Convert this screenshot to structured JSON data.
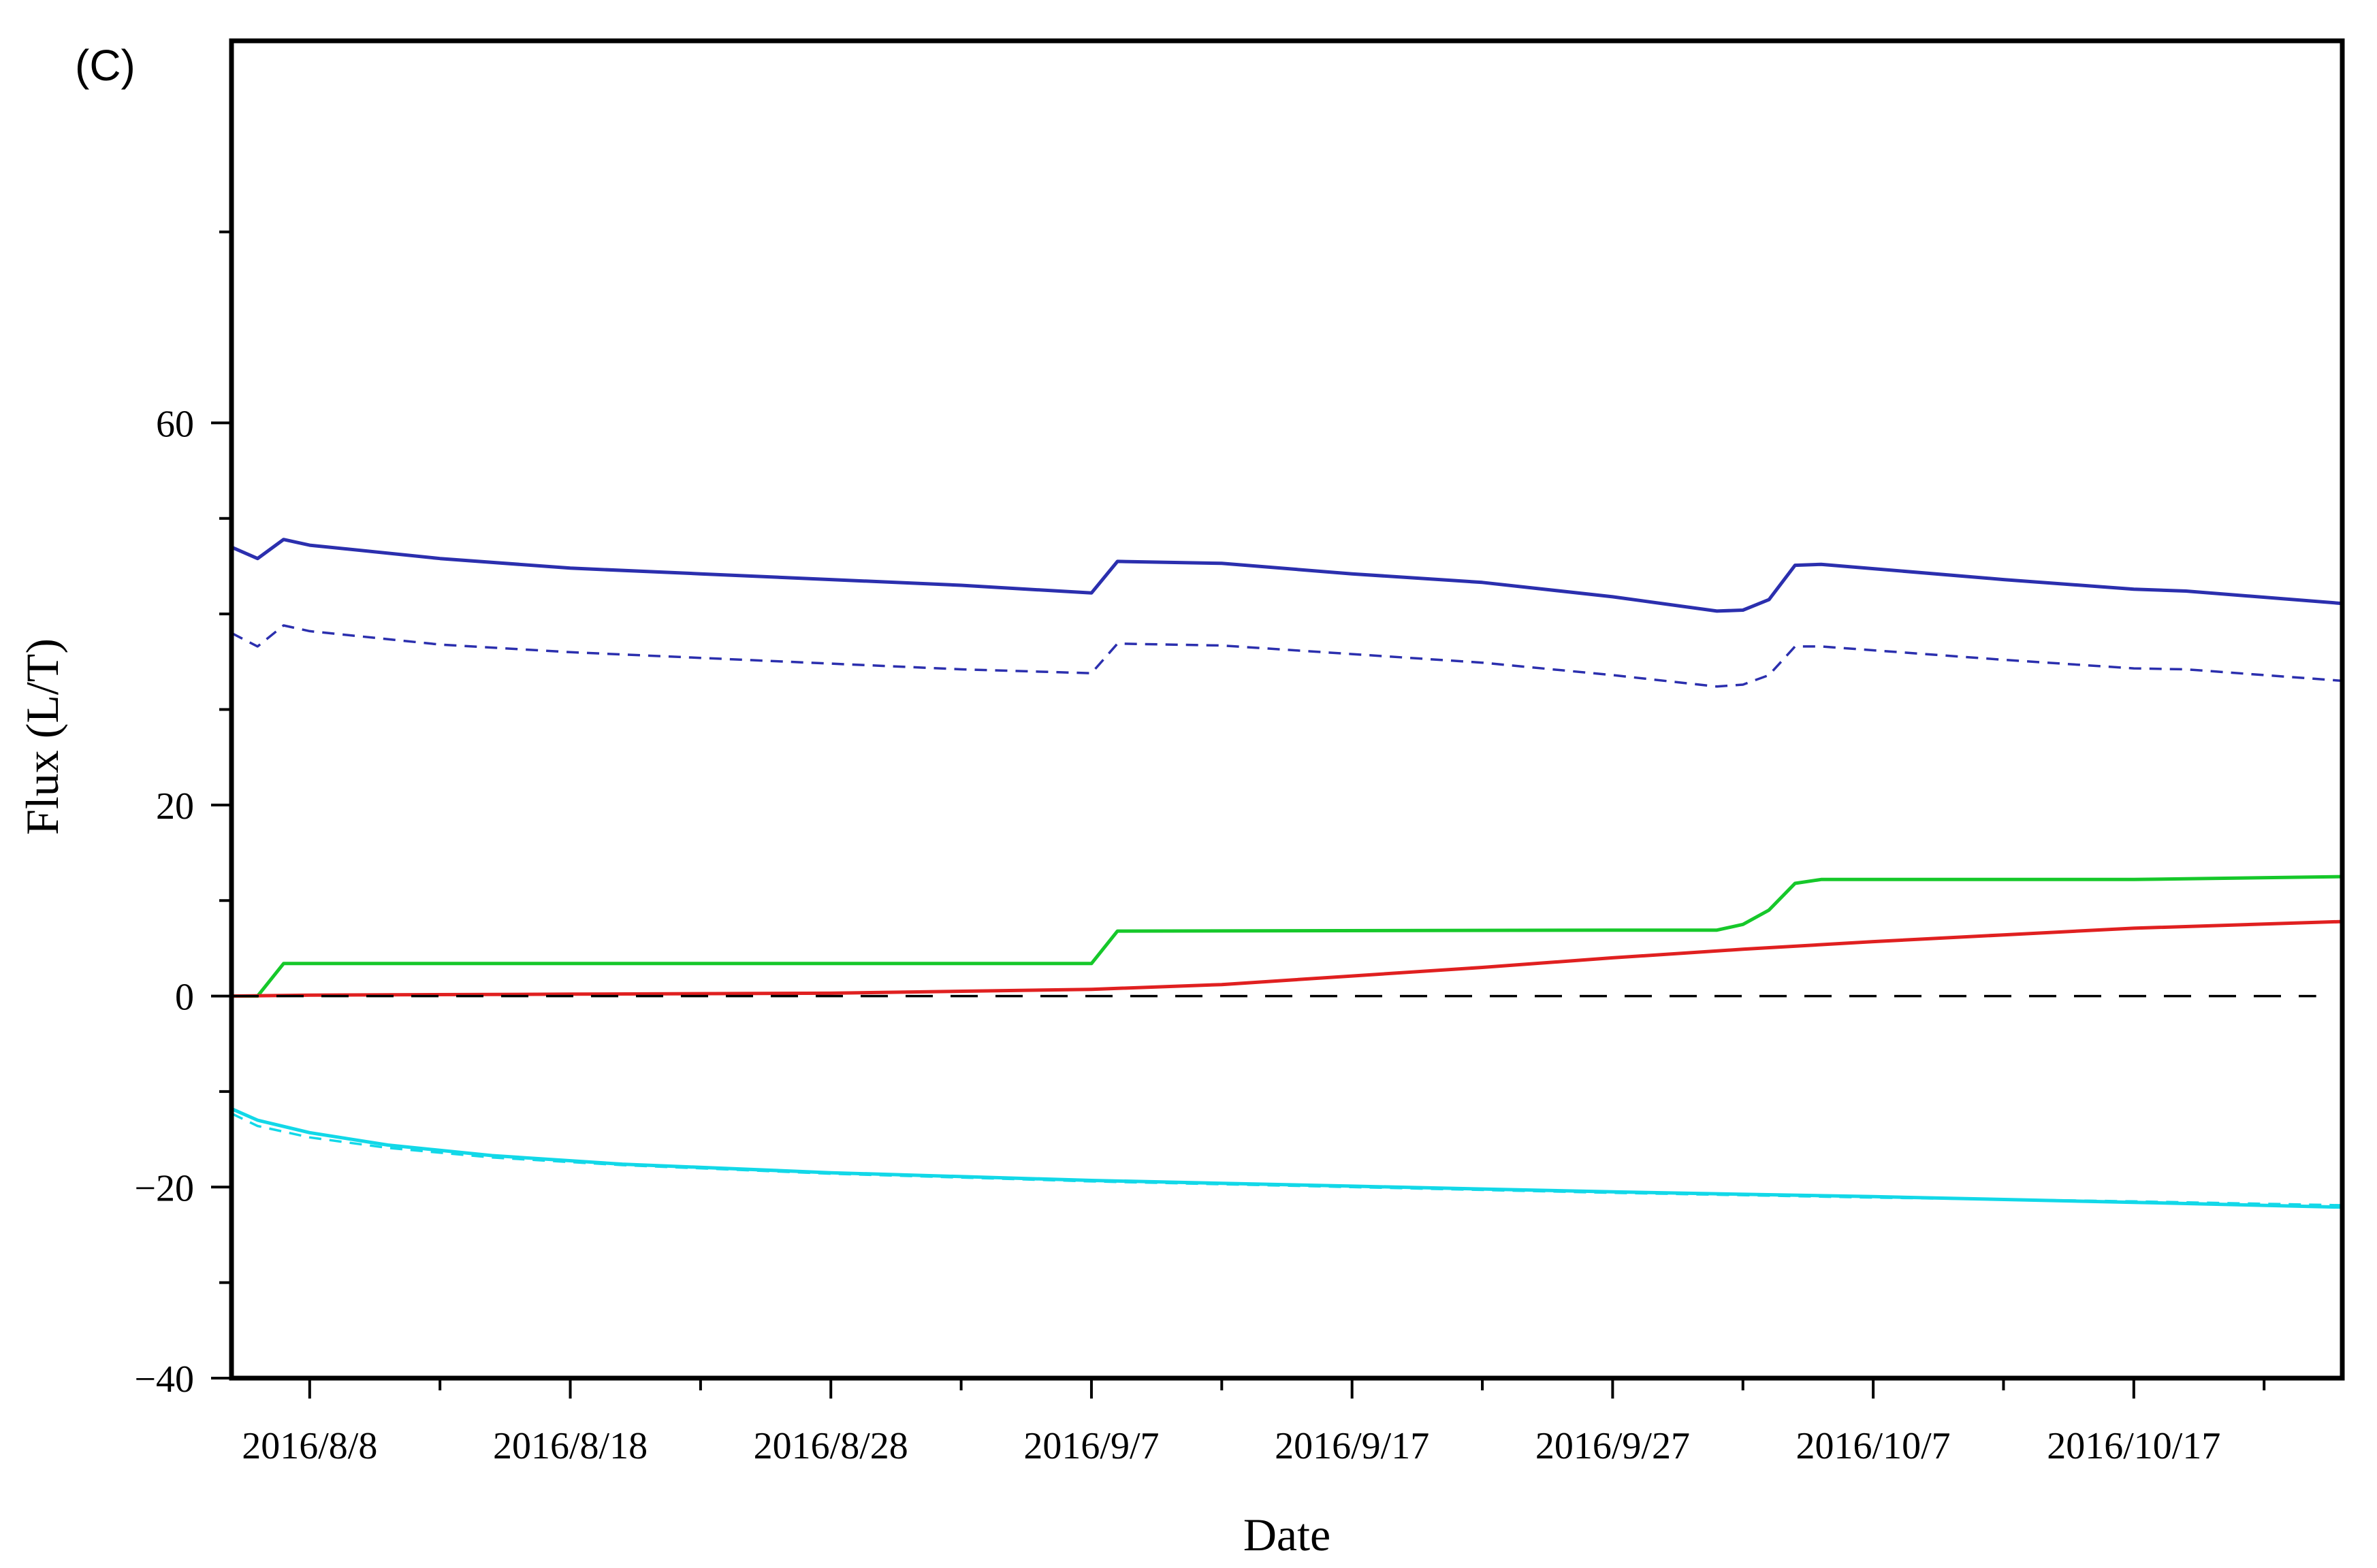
{
  "panel_label": "(C)",
  "chart_data": {
    "type": "line",
    "xlabel": "Date",
    "ylabel": "Flux (L/T)",
    "xlim": [
      "2016-08-05",
      "2016-10-25"
    ],
    "ylim": [
      -40,
      100
    ],
    "y_ticks": [
      {
        "value": 60,
        "label": "60"
      },
      {
        "value": 20,
        "label": "20"
      },
      {
        "value": 0,
        "label": "0"
      },
      {
        "value": -20,
        "label": "−20"
      },
      {
        "value": -40,
        "label": "−40"
      }
    ],
    "y_minor_ticks": [
      80,
      40,
      10,
      30,
      50,
      -10,
      -30
    ],
    "x_ticks": [
      {
        "date": "2016-08-08",
        "label": "2016/8/8"
      },
      {
        "date": "2016-08-18",
        "label": "2016/8/18"
      },
      {
        "date": "2016-08-28",
        "label": "2016/8/28"
      },
      {
        "date": "2016-09-07",
        "label": "2016/9/7"
      },
      {
        "date": "2016-09-17",
        "label": "2016/9/17"
      },
      {
        "date": "2016-09-27",
        "label": "2016/9/27"
      },
      {
        "date": "2016-10-07",
        "label": "2016/10/7"
      },
      {
        "date": "2016-10-17",
        "label": "2016/10/17"
      }
    ],
    "x_minor_ticks": [
      "2016-08-13",
      "2016-08-23",
      "2016-09-02",
      "2016-09-12",
      "2016-09-22",
      "2016-10-02",
      "2016-10-12",
      "2016-10-22"
    ],
    "grid": false,
    "series": [
      {
        "color": "#2b2fae",
        "dash": "solid",
        "points": [
          [
            "2016-08-05",
            47.0
          ],
          [
            "2016-08-06",
            45.8
          ],
          [
            "2016-08-07",
            47.8
          ],
          [
            "2016-08-08",
            47.2
          ],
          [
            "2016-08-13",
            45.8
          ],
          [
            "2016-08-18",
            44.8
          ],
          [
            "2016-08-23",
            44.2
          ],
          [
            "2016-08-28",
            43.6
          ],
          [
            "2016-09-02",
            43.0
          ],
          [
            "2016-09-07",
            42.2
          ],
          [
            "2016-09-08",
            45.5
          ],
          [
            "2016-09-12",
            45.3
          ],
          [
            "2016-09-17",
            44.2
          ],
          [
            "2016-09-22",
            43.3
          ],
          [
            "2016-09-27",
            41.8
          ],
          [
            "2016-10-01",
            40.3
          ],
          [
            "2016-10-02",
            40.4
          ],
          [
            "2016-10-03",
            41.5
          ],
          [
            "2016-10-04",
            45.1
          ],
          [
            "2016-10-05",
            45.2
          ],
          [
            "2016-10-12",
            43.6
          ],
          [
            "2016-10-17",
            42.6
          ],
          [
            "2016-10-19",
            42.4
          ],
          [
            "2016-10-25",
            41.1
          ]
        ]
      },
      {
        "color": "#2b2fae",
        "dash": "dashed",
        "points": [
          [
            "2016-08-05",
            38.0
          ],
          [
            "2016-08-06",
            36.6
          ],
          [
            "2016-08-07",
            38.8
          ],
          [
            "2016-08-08",
            38.2
          ],
          [
            "2016-08-13",
            36.8
          ],
          [
            "2016-08-18",
            36.0
          ],
          [
            "2016-08-23",
            35.4
          ],
          [
            "2016-08-28",
            34.8
          ],
          [
            "2016-09-02",
            34.2
          ],
          [
            "2016-09-07",
            33.8
          ],
          [
            "2016-09-08",
            36.9
          ],
          [
            "2016-09-12",
            36.7
          ],
          [
            "2016-09-17",
            35.8
          ],
          [
            "2016-09-22",
            34.9
          ],
          [
            "2016-09-27",
            33.6
          ],
          [
            "2016-10-01",
            32.4
          ],
          [
            "2016-10-02",
            32.6
          ],
          [
            "2016-10-03",
            33.6
          ],
          [
            "2016-10-04",
            36.6
          ],
          [
            "2016-10-05",
            36.6
          ],
          [
            "2016-10-12",
            35.2
          ],
          [
            "2016-10-17",
            34.3
          ],
          [
            "2016-10-19",
            34.2
          ],
          [
            "2016-10-25",
            33.0
          ]
        ]
      },
      {
        "color": "#16c82a",
        "dash": "solid",
        "points": [
          [
            "2016-08-05",
            0.0
          ],
          [
            "2016-08-06",
            0.0
          ],
          [
            "2016-08-07",
            3.4
          ],
          [
            "2016-08-18",
            3.4
          ],
          [
            "2016-09-07",
            3.4
          ],
          [
            "2016-09-08",
            6.8
          ],
          [
            "2016-09-27",
            6.9
          ],
          [
            "2016-10-01",
            6.9
          ],
          [
            "2016-10-02",
            7.5
          ],
          [
            "2016-10-03",
            9.0
          ],
          [
            "2016-10-04",
            11.8
          ],
          [
            "2016-10-05",
            12.2
          ],
          [
            "2016-10-17",
            12.2
          ],
          [
            "2016-10-25",
            12.5
          ]
        ]
      },
      {
        "color": "#e02020",
        "dash": "solid",
        "points": [
          [
            "2016-08-05",
            0.0
          ],
          [
            "2016-08-08",
            0.1
          ],
          [
            "2016-08-18",
            0.2
          ],
          [
            "2016-08-28",
            0.3
          ],
          [
            "2016-09-07",
            0.7
          ],
          [
            "2016-09-12",
            1.2
          ],
          [
            "2016-09-17",
            2.1
          ],
          [
            "2016-09-22",
            3.0
          ],
          [
            "2016-09-27",
            4.0
          ],
          [
            "2016-10-02",
            4.9
          ],
          [
            "2016-10-07",
            5.7
          ],
          [
            "2016-10-12",
            6.4
          ],
          [
            "2016-10-17",
            7.1
          ],
          [
            "2016-10-25",
            7.8
          ]
        ]
      },
      {
        "color": "#000000",
        "dash": "longdash",
        "points": [
          [
            "2016-08-05",
            0.0
          ],
          [
            "2016-10-24",
            0.0
          ]
        ]
      },
      {
        "color": "#12d8e8",
        "dash": "solid",
        "points": [
          [
            "2016-08-05",
            -11.8
          ],
          [
            "2016-08-06",
            -13.0
          ],
          [
            "2016-08-08",
            -14.3
          ],
          [
            "2016-08-11",
            -15.6
          ],
          [
            "2016-08-15",
            -16.7
          ],
          [
            "2016-08-20",
            -17.6
          ],
          [
            "2016-08-28",
            -18.5
          ],
          [
            "2016-09-07",
            -19.3
          ],
          [
            "2016-09-17",
            -19.9
          ],
          [
            "2016-09-27",
            -20.5
          ],
          [
            "2016-10-07",
            -21.0
          ],
          [
            "2016-10-17",
            -21.6
          ],
          [
            "2016-10-25",
            -22.1
          ]
        ]
      },
      {
        "color": "#12d8e8",
        "dash": "dashed",
        "points": [
          [
            "2016-08-05",
            -12.3
          ],
          [
            "2016-08-06",
            -13.6
          ],
          [
            "2016-08-08",
            -14.8
          ],
          [
            "2016-08-11",
            -15.9
          ],
          [
            "2016-08-15",
            -16.9
          ],
          [
            "2016-08-20",
            -17.7
          ],
          [
            "2016-08-28",
            -18.6
          ],
          [
            "2016-09-07",
            -19.4
          ],
          [
            "2016-09-17",
            -20.0
          ],
          [
            "2016-09-27",
            -20.6
          ],
          [
            "2016-10-07",
            -21.1
          ],
          [
            "2016-10-17",
            -21.5
          ],
          [
            "2016-10-25",
            -21.9
          ]
        ]
      }
    ]
  }
}
